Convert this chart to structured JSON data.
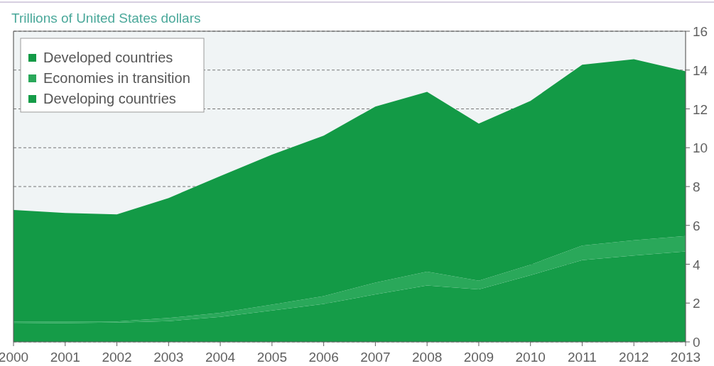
{
  "chart_data": {
    "type": "area",
    "stacked": true,
    "ylabel": "Trillions of United States dollars",
    "x": [
      2000,
      2001,
      2002,
      2003,
      2004,
      2005,
      2006,
      2007,
      2008,
      2009,
      2010,
      2011,
      2012,
      2013
    ],
    "series": [
      {
        "name": "Developing countries",
        "color": "#159c48",
        "values": [
          0.95,
          0.97,
          1.0,
          1.07,
          1.29,
          1.62,
          1.95,
          2.45,
          2.9,
          2.7,
          3.43,
          4.21,
          4.45,
          4.66
        ]
      },
      {
        "name": "Economies in transition",
        "color": "#2aa85a",
        "values": [
          0.1,
          0.08,
          0.05,
          0.16,
          0.21,
          0.3,
          0.41,
          0.6,
          0.72,
          0.45,
          0.54,
          0.75,
          0.78,
          0.79
        ]
      },
      {
        "name": "Developed countries",
        "color": "#139a46",
        "values": [
          5.74,
          5.59,
          5.52,
          6.18,
          7.04,
          7.72,
          8.26,
          9.07,
          9.26,
          8.09,
          8.44,
          9.31,
          9.33,
          8.49
        ]
      }
    ],
    "xlim": [
      2000,
      2013
    ],
    "xticks": [
      2000,
      2001,
      2002,
      2003,
      2004,
      2005,
      2006,
      2007,
      2008,
      2009,
      2010,
      2011,
      2012,
      2013
    ],
    "ylim": [
      0,
      16
    ],
    "yticks": [
      0,
      2,
      4,
      6,
      8,
      10,
      12,
      14,
      16
    ],
    "grid": "y",
    "legend": "top left"
  }
}
